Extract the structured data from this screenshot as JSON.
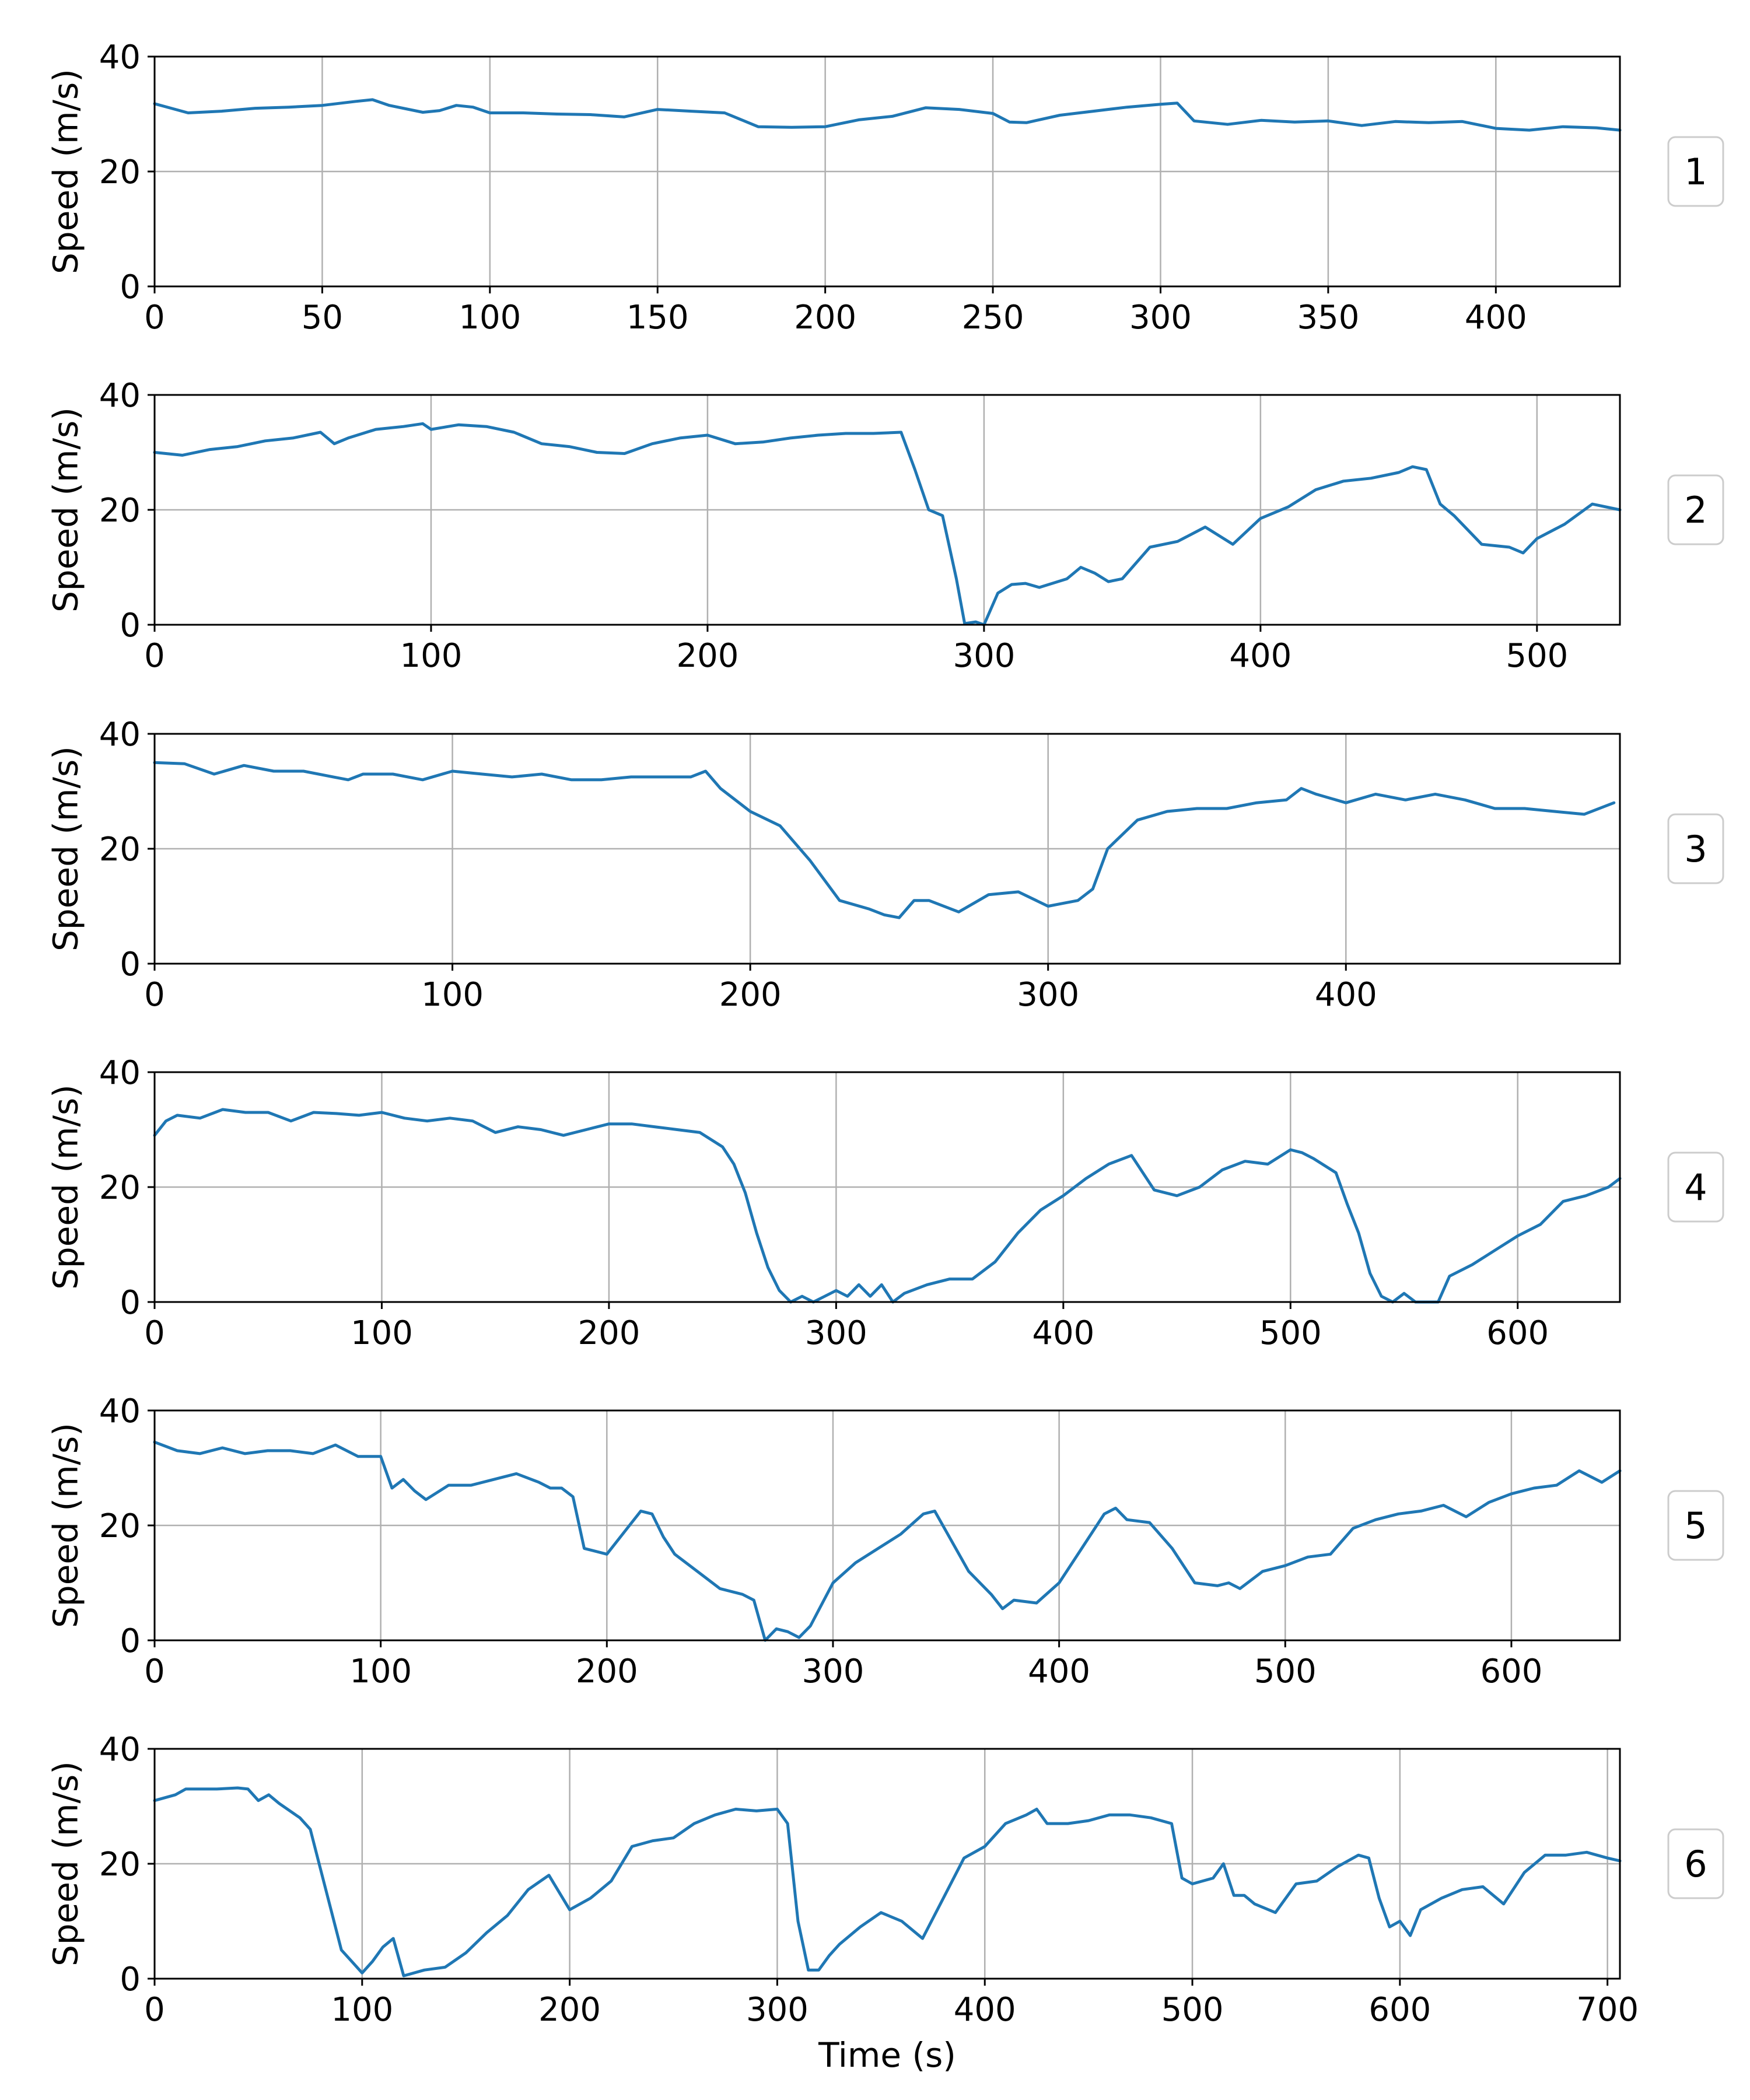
{
  "colors": {
    "series": "#1f77b4",
    "grid": "#b0b0b0",
    "axis": "#000000"
  },
  "shared_xlabel": "Time (s)",
  "chart_data": [
    {
      "type": "line",
      "label": "1",
      "xlabel": "",
      "ylabel": "Speed (m/s)",
      "xlim": [
        0,
        437
      ],
      "ylim": [
        0,
        40
      ],
      "grid": true,
      "xticks": [
        0,
        50,
        100,
        150,
        200,
        250,
        300,
        350,
        400
      ],
      "yticks": [
        0,
        20,
        40
      ],
      "x": [
        0,
        5,
        10,
        20,
        30,
        40,
        50,
        60,
        65,
        70,
        80,
        85,
        90,
        95,
        100,
        110,
        120,
        130,
        140,
        150,
        160,
        170,
        180,
        190,
        200,
        210,
        220,
        230,
        240,
        250,
        255,
        260,
        270,
        280,
        290,
        300,
        305,
        310,
        320,
        330,
        340,
        350,
        360,
        370,
        380,
        390,
        400,
        410,
        420,
        430,
        437
      ],
      "values": [
        31.8,
        31,
        30.2,
        30.5,
        31,
        31.2,
        31.5,
        32.2,
        32.5,
        31.5,
        30.3,
        30.6,
        31.5,
        31.2,
        30.2,
        30.2,
        30,
        29.9,
        29.5,
        30.8,
        30.5,
        30.2,
        27.8,
        27.7,
        27.8,
        29,
        29.6,
        31.1,
        30.8,
        30.1,
        28.6,
        28.5,
        29.8,
        30.5,
        31.2,
        31.7,
        31.9,
        28.8,
        28.2,
        28.9,
        28.6,
        28.8,
        28,
        28.7,
        28.5,
        28.7,
        27.5,
        27.2,
        27.8,
        27.6,
        27.2
      ]
    },
    {
      "type": "line",
      "label": "2",
      "xlabel": "",
      "ylabel": "Speed (m/s)",
      "xlim": [
        0,
        530
      ],
      "ylim": [
        0,
        40
      ],
      "grid": true,
      "xticks": [
        0,
        100,
        200,
        300,
        400,
        500
      ],
      "yticks": [
        0,
        20,
        40
      ],
      "x": [
        0,
        10,
        20,
        30,
        40,
        50,
        60,
        65,
        70,
        80,
        90,
        97,
        100,
        110,
        120,
        130,
        140,
        150,
        160,
        170,
        180,
        190,
        200,
        210,
        220,
        230,
        240,
        250,
        260,
        270,
        275,
        280,
        285,
        290,
        293,
        297,
        300,
        305,
        310,
        315,
        320,
        330,
        335,
        340,
        345,
        350,
        360,
        370,
        380,
        390,
        400,
        410,
        420,
        430,
        440,
        450,
        455,
        460,
        465,
        470,
        480,
        490,
        495,
        500,
        510,
        520,
        530
      ],
      "values": [
        30,
        29.5,
        30.5,
        31,
        32,
        32.5,
        33.5,
        31.5,
        32.5,
        34,
        34.5,
        35,
        34,
        34.8,
        34.5,
        33.5,
        31.5,
        31,
        30,
        29.8,
        31.5,
        32.5,
        33,
        31.5,
        31.8,
        32.5,
        33,
        33.3,
        33.3,
        33.5,
        27,
        20,
        19,
        8,
        0.2,
        0.5,
        0,
        5.5,
        7,
        7.2,
        6.5,
        8,
        10,
        9,
        7.5,
        8,
        13.5,
        14.5,
        17,
        14,
        18.5,
        20.5,
        23.5,
        25,
        25.5,
        26.5,
        27.5,
        27,
        21,
        19,
        14,
        13.5,
        12.5,
        15,
        17.5,
        21,
        20
      ]
    },
    {
      "type": "line",
      "label": "3",
      "xlabel": "",
      "ylabel": "Speed (m/s)",
      "xlim": [
        0,
        492
      ],
      "ylim": [
        0,
        40
      ],
      "grid": true,
      "xticks": [
        0,
        100,
        200,
        300,
        400
      ],
      "yticks": [
        0,
        20,
        40
      ],
      "x": [
        0,
        10,
        20,
        30,
        40,
        50,
        60,
        65,
        70,
        80,
        90,
        100,
        110,
        120,
        130,
        140,
        150,
        160,
        170,
        180,
        185,
        190,
        200,
        210,
        220,
        230,
        240,
        245,
        250,
        255,
        260,
        270,
        280,
        290,
        300,
        305,
        310,
        315,
        320,
        330,
        340,
        350,
        360,
        370,
        380,
        385,
        390,
        400,
        410,
        420,
        430,
        440,
        450,
        460,
        470,
        480,
        490
      ],
      "values": [
        35,
        34.8,
        33,
        34.5,
        33.5,
        33.5,
        32.5,
        32,
        33,
        33,
        32,
        33.5,
        33,
        32.5,
        33,
        32,
        32,
        32.5,
        32.5,
        32.5,
        33.5,
        30.5,
        26.5,
        24,
        18,
        11,
        9.5,
        8.5,
        8,
        11,
        11,
        9,
        12,
        12.5,
        10,
        10.5,
        11,
        13,
        20,
        25,
        26.5,
        27,
        27,
        28,
        28.5,
        30.5,
        29.5,
        28,
        29.5,
        28.5,
        29.5,
        28.5,
        27,
        27,
        26.5,
        26,
        28
      ]
    },
    {
      "type": "line",
      "label": "4",
      "xlabel": "",
      "ylabel": "Speed (m/s)",
      "xlim": [
        0,
        645
      ],
      "ylim": [
        0,
        40
      ],
      "grid": true,
      "xticks": [
        0,
        100,
        200,
        300,
        400,
        500,
        600
      ],
      "yticks": [
        0,
        20,
        40
      ],
      "x": [
        0,
        5,
        10,
        20,
        30,
        40,
        50,
        60,
        70,
        80,
        90,
        100,
        110,
        120,
        130,
        140,
        150,
        160,
        170,
        180,
        190,
        200,
        210,
        220,
        230,
        240,
        250,
        255,
        260,
        265,
        270,
        275,
        280,
        285,
        290,
        295,
        300,
        305,
        310,
        315,
        320,
        325,
        330,
        340,
        350,
        360,
        370,
        380,
        390,
        400,
        410,
        420,
        430,
        440,
        450,
        460,
        470,
        480,
        490,
        500,
        505,
        510,
        520,
        525,
        530,
        535,
        540,
        545,
        550,
        555,
        560,
        565,
        570,
        580,
        590,
        600,
        610,
        620,
        630,
        640,
        645
      ],
      "values": [
        29,
        31.5,
        32.5,
        32,
        33.5,
        33,
        33,
        31.5,
        33,
        32.8,
        32.5,
        33,
        32,
        31.5,
        32,
        31.5,
        29.5,
        30.5,
        30,
        29,
        30,
        31,
        31,
        30.5,
        30,
        29.5,
        27,
        24,
        19,
        12,
        6,
        2,
        0,
        1,
        0,
        1,
        2,
        1,
        3,
        1,
        3,
        0,
        1.5,
        3,
        4,
        4,
        7,
        12,
        16,
        18.5,
        21.5,
        24,
        25.5,
        19.5,
        18.5,
        20,
        23,
        24.5,
        24,
        26.5,
        26,
        25,
        22.5,
        17,
        12,
        5,
        1,
        0,
        1.5,
        0,
        0,
        0,
        4.5,
        6.5,
        9,
        11.5,
        13.5,
        17.5,
        18.5,
        20,
        21.5
      ]
    },
    {
      "type": "line",
      "label": "5",
      "xlabel": "",
      "ylabel": "Speed (m/s)",
      "xlim": [
        0,
        648
      ],
      "ylim": [
        0,
        40
      ],
      "grid": true,
      "xticks": [
        0,
        100,
        200,
        300,
        400,
        500,
        600
      ],
      "yticks": [
        0,
        20,
        40
      ],
      "x": [
        0,
        10,
        20,
        30,
        40,
        50,
        60,
        70,
        80,
        90,
        100,
        105,
        110,
        115,
        120,
        130,
        140,
        150,
        160,
        170,
        175,
        180,
        185,
        190,
        200,
        210,
        215,
        220,
        225,
        230,
        240,
        250,
        260,
        265,
        270,
        275,
        280,
        285,
        290,
        300,
        310,
        320,
        330,
        340,
        345,
        350,
        360,
        370,
        375,
        380,
        390,
        400,
        410,
        420,
        425,
        430,
        440,
        450,
        460,
        470,
        475,
        480,
        490,
        500,
        510,
        520,
        530,
        540,
        550,
        560,
        570,
        580,
        590,
        600,
        610,
        620,
        630,
        640,
        648
      ],
      "values": [
        34.5,
        33,
        32.5,
        33.5,
        32.5,
        33,
        33,
        32.5,
        34,
        32,
        32,
        26.5,
        28,
        26,
        24.5,
        27,
        27,
        28,
        29,
        27.5,
        26.5,
        26.5,
        25,
        16,
        15,
        20,
        22.5,
        22,
        18,
        15,
        12,
        9,
        8,
        7,
        0,
        2,
        1.5,
        0.5,
        2.5,
        10,
        13.5,
        16,
        18.5,
        22,
        22.5,
        19,
        12,
        8,
        5.5,
        7,
        6.5,
        10,
        16,
        22,
        23,
        21,
        20.5,
        16,
        10,
        9.5,
        10,
        9,
        12,
        13,
        14.5,
        15,
        19.5,
        21,
        22,
        22.5,
        23.5,
        21.5,
        24,
        25.5,
        26.5,
        27,
        29.5,
        27.5,
        29.5
      ]
    },
    {
      "type": "line",
      "label": "6",
      "xlabel": "Time (s)",
      "ylabel": "Speed (m/s)",
      "xlim": [
        0,
        706
      ],
      "ylim": [
        0,
        40
      ],
      "grid": true,
      "xticks": [
        0,
        100,
        200,
        300,
        400,
        500,
        600,
        700
      ],
      "yticks": [
        0,
        20,
        40
      ],
      "x": [
        0,
        10,
        15,
        20,
        30,
        40,
        45,
        50,
        55,
        60,
        70,
        75,
        80,
        85,
        90,
        95,
        100,
        105,
        110,
        115,
        120,
        130,
        140,
        150,
        160,
        170,
        180,
        190,
        200,
        210,
        220,
        230,
        240,
        250,
        260,
        270,
        280,
        290,
        300,
        305,
        310,
        315,
        320,
        325,
        330,
        340,
        350,
        360,
        370,
        380,
        390,
        400,
        410,
        420,
        425,
        430,
        440,
        450,
        460,
        470,
        480,
        490,
        495,
        500,
        510,
        515,
        520,
        525,
        530,
        540,
        550,
        560,
        570,
        580,
        585,
        590,
        595,
        600,
        605,
        610,
        620,
        630,
        640,
        650,
        660,
        670,
        680,
        690,
        700,
        706
      ],
      "values": [
        31,
        32,
        33,
        33,
        33,
        33.2,
        33,
        31,
        32,
        30.5,
        28,
        26,
        19,
        12,
        5,
        3,
        1,
        3,
        5.5,
        7,
        0.5,
        1.5,
        2,
        4.5,
        8,
        11,
        15.5,
        18,
        12,
        14,
        17,
        23,
        24,
        24.5,
        27,
        28.5,
        29.5,
        29.2,
        29.5,
        27,
        10,
        1.5,
        1.5,
        4,
        6,
        9,
        11.5,
        10,
        7,
        14,
        21,
        23,
        27,
        28.5,
        29.5,
        27,
        27,
        27.5,
        28.5,
        28.5,
        28,
        27,
        17.5,
        16.5,
        17.5,
        20,
        14.5,
        14.5,
        13,
        11.5,
        16.5,
        17,
        19.5,
        21.5,
        21,
        14,
        9,
        10,
        7.5,
        12,
        14,
        15.5,
        16,
        13,
        18.5,
        21.5,
        21.5,
        22,
        21,
        20.5
      ]
    }
  ]
}
